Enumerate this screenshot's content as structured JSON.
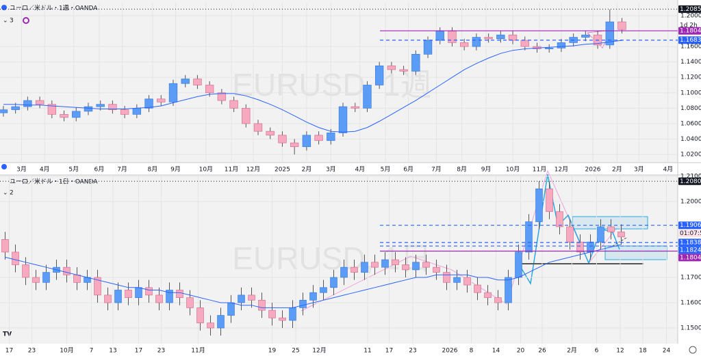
{
  "chart_data": [
    {
      "type": "candlestick",
      "header": "ユーロ／米ドル・1週・OANDA",
      "indicator_count": "3",
      "watermark": "EURUSD, 1週",
      "up_color": "#5b9cf6",
      "down_color": "#f7a9c0",
      "grid": true,
      "open": [
        1.074,
        1.078,
        1.082,
        1.09,
        1.085,
        1.072,
        1.068,
        1.076,
        1.082,
        1.085,
        1.078,
        1.072,
        1.08,
        1.092,
        1.088,
        1.112,
        1.118,
        1.11,
        1.1,
        1.09,
        1.08,
        1.06,
        1.05,
        1.045,
        1.035,
        1.03,
        1.045,
        1.038,
        1.048,
        1.082,
        1.08,
        1.11,
        1.135,
        1.13,
        1.128,
        1.15,
        1.168,
        1.18,
        1.165,
        1.16,
        1.172,
        1.17,
        1.175,
        1.168,
        1.16,
        1.157,
        1.158,
        1.165,
        1.172,
        1.175,
        1.162,
        1.192
      ],
      "high": [
        1.083,
        1.087,
        1.095,
        1.095,
        1.09,
        1.077,
        1.081,
        1.087,
        1.09,
        1.09,
        1.083,
        1.085,
        1.097,
        1.097,
        1.117,
        1.123,
        1.123,
        1.115,
        1.105,
        1.095,
        1.085,
        1.065,
        1.055,
        1.05,
        1.04,
        1.05,
        1.05,
        1.053,
        1.087,
        1.087,
        1.115,
        1.14,
        1.14,
        1.135,
        1.155,
        1.173,
        1.185,
        1.185,
        1.17,
        1.177,
        1.177,
        1.18,
        1.18,
        1.173,
        1.165,
        1.163,
        1.17,
        1.177,
        1.18,
        1.18,
        1.208,
        1.197
      ],
      "low": [
        1.069,
        1.073,
        1.077,
        1.08,
        1.067,
        1.063,
        1.063,
        1.071,
        1.077,
        1.073,
        1.067,
        1.067,
        1.075,
        1.083,
        1.083,
        1.107,
        1.105,
        1.095,
        1.085,
        1.075,
        1.055,
        1.045,
        1.04,
        1.03,
        1.02,
        1.025,
        1.033,
        1.033,
        1.043,
        1.075,
        1.075,
        1.105,
        1.125,
        1.123,
        1.123,
        1.145,
        1.163,
        1.16,
        1.155,
        1.155,
        1.165,
        1.165,
        1.163,
        1.155,
        1.152,
        1.152,
        1.153,
        1.16,
        1.167,
        1.157,
        1.157,
        1.177
      ],
      "close": [
        1.078,
        1.082,
        1.09,
        1.085,
        1.072,
        1.068,
        1.076,
        1.082,
        1.085,
        1.078,
        1.072,
        1.08,
        1.092,
        1.088,
        1.112,
        1.118,
        1.11,
        1.1,
        1.09,
        1.08,
        1.06,
        1.05,
        1.045,
        1.035,
        1.03,
        1.045,
        1.038,
        1.048,
        1.082,
        1.08,
        1.11,
        1.135,
        1.13,
        1.128,
        1.15,
        1.168,
        1.18,
        1.165,
        1.16,
        1.172,
        1.17,
        1.175,
        1.168,
        1.16,
        1.157,
        1.158,
        1.165,
        1.172,
        1.175,
        1.162,
        1.192,
        1.182
      ],
      "ma": {
        "color": "#2962ff",
        "values": [
          1.085,
          1.085,
          1.084,
          1.084,
          1.083,
          1.082,
          1.081,
          1.08,
          1.079,
          1.079,
          1.079,
          1.08,
          1.081,
          1.083,
          1.087,
          1.091,
          1.095,
          1.098,
          1.099,
          1.099,
          1.096,
          1.091,
          1.085,
          1.078,
          1.07,
          1.062,
          1.055,
          1.05,
          1.049,
          1.05,
          1.055,
          1.063,
          1.072,
          1.081,
          1.09,
          1.1,
          1.11,
          1.12,
          1.13,
          1.138,
          1.145,
          1.151,
          1.155,
          1.157,
          1.158,
          1.159,
          1.16,
          1.161,
          1.163,
          1.164,
          1.166,
          1.168
        ]
      },
      "xlim": [
        -0.28,
        55.6
      ],
      "ylim": [
        1.0094,
        1.2168
      ],
      "xticks": [
        {
          "value": 1.5,
          "label": "3月"
        },
        {
          "value": 3.4,
          "label": "4月"
        },
        {
          "value": 5.8,
          "label": "5月"
        },
        {
          "value": 7.9,
          "label": "6月"
        },
        {
          "value": 9.8,
          "label": "7月"
        },
        {
          "value": 12.3,
          "label": "8月"
        },
        {
          "value": 14.2,
          "label": "9月"
        },
        {
          "value": 16.7,
          "label": "10月"
        },
        {
          "value": 18.8,
          "label": "11月"
        },
        {
          "value": 20.6,
          "label": "12月"
        },
        {
          "value": 23.0,
          "label": "2025"
        },
        {
          "value": 25.0,
          "label": "2月"
        },
        {
          "value": 27.0,
          "label": "3月"
        },
        {
          "value": 29.4,
          "label": "4月"
        },
        {
          "value": 31.5,
          "label": "5月"
        },
        {
          "value": 33.4,
          "label": "6月"
        },
        {
          "value": 35.7,
          "label": "7月"
        },
        {
          "value": 37.8,
          "label": "8月"
        },
        {
          "value": 39.8,
          "label": "9月"
        },
        {
          "value": 42.0,
          "label": "10月"
        },
        {
          "value": 44.2,
          "label": "11月"
        },
        {
          "value": 46.0,
          "label": "12月"
        },
        {
          "value": 48.6,
          "label": "2026"
        },
        {
          "value": 50.6,
          "label": "2月"
        },
        {
          "value": 52.4,
          "label": "3月"
        },
        {
          "value": 54.8,
          "label": "4月"
        }
      ],
      "yticks": [
        {
          "value": 1.2,
          "label": "1.2000"
        },
        {
          "value": 1.16,
          "label": "1.1600"
        },
        {
          "value": 1.14,
          "label": "1.1400"
        },
        {
          "value": 1.12,
          "label": "1.1200"
        },
        {
          "value": 1.1,
          "label": "1.1000"
        },
        {
          "value": 1.08,
          "label": "1.0800"
        },
        {
          "value": 1.06,
          "label": "1.0600"
        },
        {
          "value": 1.04,
          "label": "1.0400"
        },
        {
          "value": 1.02,
          "label": "1.0200"
        }
      ],
      "countdown": "1d 2h",
      "price_labels": [
        {
          "value": 1.2085,
          "label": "1.2085",
          "color": "#131722"
        },
        {
          "value": 1.1804,
          "label": "1.1804",
          "color": "#9c27b0"
        },
        {
          "value": 1.1683,
          "label": "1.1683",
          "color": "#2962ff"
        }
      ]
    },
    {
      "type": "candlestick",
      "header": "ユーロ／米ドル・1日・OANDA",
      "indicator_count": "2",
      "watermark": "EURUSD, 1日",
      "up_color": "#5b9cf6",
      "down_color": "#f7a9c0",
      "grid": true,
      "open": [
        1.185,
        1.18,
        1.175,
        1.17,
        1.168,
        1.172,
        1.174,
        1.171,
        1.168,
        1.17,
        1.163,
        1.16,
        1.165,
        1.162,
        1.166,
        1.163,
        1.16,
        1.165,
        1.162,
        1.158,
        1.152,
        1.15,
        1.155,
        1.16,
        1.163,
        1.161,
        1.157,
        1.154,
        1.153,
        1.158,
        1.161,
        1.164,
        1.166,
        1.17,
        1.174,
        1.172,
        1.176,
        1.174,
        1.177,
        1.175,
        1.173,
        1.176,
        1.174,
        1.172,
        1.168,
        1.17,
        1.167,
        1.164,
        1.162,
        1.16,
        1.17,
        1.18,
        1.192,
        1.205,
        1.196,
        1.19,
        1.184,
        1.18,
        1.184,
        1.19,
        1.188
      ],
      "high": [
        1.188,
        1.183,
        1.178,
        1.173,
        1.175,
        1.177,
        1.177,
        1.174,
        1.173,
        1.173,
        1.166,
        1.168,
        1.168,
        1.169,
        1.169,
        1.166,
        1.168,
        1.168,
        1.165,
        1.161,
        1.155,
        1.158,
        1.163,
        1.166,
        1.166,
        1.164,
        1.16,
        1.157,
        1.161,
        1.164,
        1.167,
        1.169,
        1.173,
        1.177,
        1.177,
        1.179,
        1.179,
        1.18,
        1.18,
        1.178,
        1.179,
        1.179,
        1.177,
        1.175,
        1.173,
        1.173,
        1.17,
        1.167,
        1.165,
        1.173,
        1.183,
        1.195,
        1.208,
        1.208,
        1.199,
        1.193,
        1.187,
        1.187,
        1.193,
        1.193,
        1.191
      ],
      "low": [
        1.177,
        1.172,
        1.167,
        1.165,
        1.165,
        1.169,
        1.168,
        1.165,
        1.165,
        1.16,
        1.157,
        1.157,
        1.159,
        1.159,
        1.16,
        1.157,
        1.157,
        1.159,
        1.155,
        1.149,
        1.147,
        1.147,
        1.152,
        1.157,
        1.158,
        1.154,
        1.151,
        1.15,
        1.15,
        1.155,
        1.158,
        1.161,
        1.163,
        1.167,
        1.169,
        1.169,
        1.171,
        1.171,
        1.172,
        1.17,
        1.17,
        1.171,
        1.169,
        1.165,
        1.165,
        1.164,
        1.161,
        1.159,
        1.157,
        1.157,
        1.167,
        1.177,
        1.189,
        1.193,
        1.187,
        1.181,
        1.177,
        1.177,
        1.181,
        1.185,
        1.183
      ],
      "close": [
        1.18,
        1.175,
        1.17,
        1.168,
        1.172,
        1.174,
        1.171,
        1.168,
        1.17,
        1.163,
        1.16,
        1.165,
        1.162,
        1.166,
        1.163,
        1.16,
        1.165,
        1.162,
        1.158,
        1.152,
        1.15,
        1.155,
        1.16,
        1.163,
        1.161,
        1.157,
        1.154,
        1.153,
        1.158,
        1.161,
        1.164,
        1.166,
        1.17,
        1.174,
        1.172,
        1.176,
        1.174,
        1.177,
        1.175,
        1.173,
        1.176,
        1.174,
        1.172,
        1.168,
        1.17,
        1.167,
        1.164,
        1.162,
        1.16,
        1.17,
        1.18,
        1.192,
        1.205,
        1.196,
        1.19,
        1.184,
        1.18,
        1.184,
        1.19,
        1.188,
        1.186
      ],
      "ma": {
        "color": "#2962ff",
        "values": [
          1.178,
          1.177,
          1.176,
          1.175,
          1.174,
          1.173,
          1.172,
          1.171,
          1.17,
          1.169,
          1.168,
          1.167,
          1.166,
          1.166,
          1.165,
          1.165,
          1.164,
          1.164,
          1.163,
          1.162,
          1.161,
          1.16,
          1.16,
          1.159,
          1.159,
          1.158,
          1.158,
          1.158,
          1.158,
          1.159,
          1.16,
          1.161,
          1.162,
          1.163,
          1.164,
          1.165,
          1.166,
          1.167,
          1.168,
          1.169,
          1.17,
          1.17,
          1.171,
          1.171,
          1.171,
          1.171,
          1.17,
          1.17,
          1.169,
          1.169,
          1.17,
          1.172,
          1.174,
          1.176,
          1.177,
          1.178,
          1.179,
          1.18,
          1.181,
          1.182,
          1.183
        ]
      },
      "xlim": [
        -0.5,
        65.5
      ],
      "ylim": [
        1.1438,
        1.2105
      ],
      "xticks": [
        {
          "value": 0.4,
          "label": "17"
        },
        {
          "value": 2.6,
          "label": "23"
        },
        {
          "value": 6.0,
          "label": "10月"
        },
        {
          "value": 8.4,
          "label": "7"
        },
        {
          "value": 10.5,
          "label": "13"
        },
        {
          "value": 13.0,
          "label": "17"
        },
        {
          "value": 15.2,
          "label": "23"
        },
        {
          "value": 18.8,
          "label": "11月"
        },
        {
          "value": 26.0,
          "label": "19"
        },
        {
          "value": 28.3,
          "label": "25"
        },
        {
          "value": 30.6,
          "label": "12月"
        },
        {
          "value": 35.3,
          "label": "11"
        },
        {
          "value": 37.4,
          "label": "17"
        },
        {
          "value": 39.7,
          "label": "23"
        },
        {
          "value": 43.3,
          "label": "2026"
        },
        {
          "value": 45.4,
          "label": "8"
        },
        {
          "value": 47.8,
          "label": "14"
        },
        {
          "value": 50.2,
          "label": "20"
        },
        {
          "value": 52.3,
          "label": "26"
        },
        {
          "value": 55.2,
          "label": "2月"
        },
        {
          "value": 57.6,
          "label": "6"
        },
        {
          "value": 59.9,
          "label": "12"
        },
        {
          "value": 62.1,
          "label": "18"
        },
        {
          "value": 64.4,
          "label": "24"
        }
      ],
      "yticks": [
        {
          "value": 1.21,
          "label": "1.2100"
        },
        {
          "value": 1.2,
          "label": "1.2000"
        },
        {
          "value": 1.17,
          "label": "1.1700"
        },
        {
          "value": 1.16,
          "label": "1.1600"
        },
        {
          "value": 1.15,
          "label": "1.1500"
        }
      ],
      "countdown": "01:07:5",
      "price_labels": [
        {
          "value": 1.208,
          "label": "1.2080",
          "color": "#131722"
        },
        {
          "value": 1.1906,
          "label": "1.1906",
          "color": "#2962ff"
        },
        {
          "value": 1.1838,
          "label": "1.1838",
          "color": "#2962ff"
        },
        {
          "value": 1.1824,
          "label": "1.1824",
          "color": "#2962ff"
        },
        {
          "value": 1.1804,
          "label": "1.1804",
          "color": "#9c27b0"
        }
      ]
    }
  ]
}
